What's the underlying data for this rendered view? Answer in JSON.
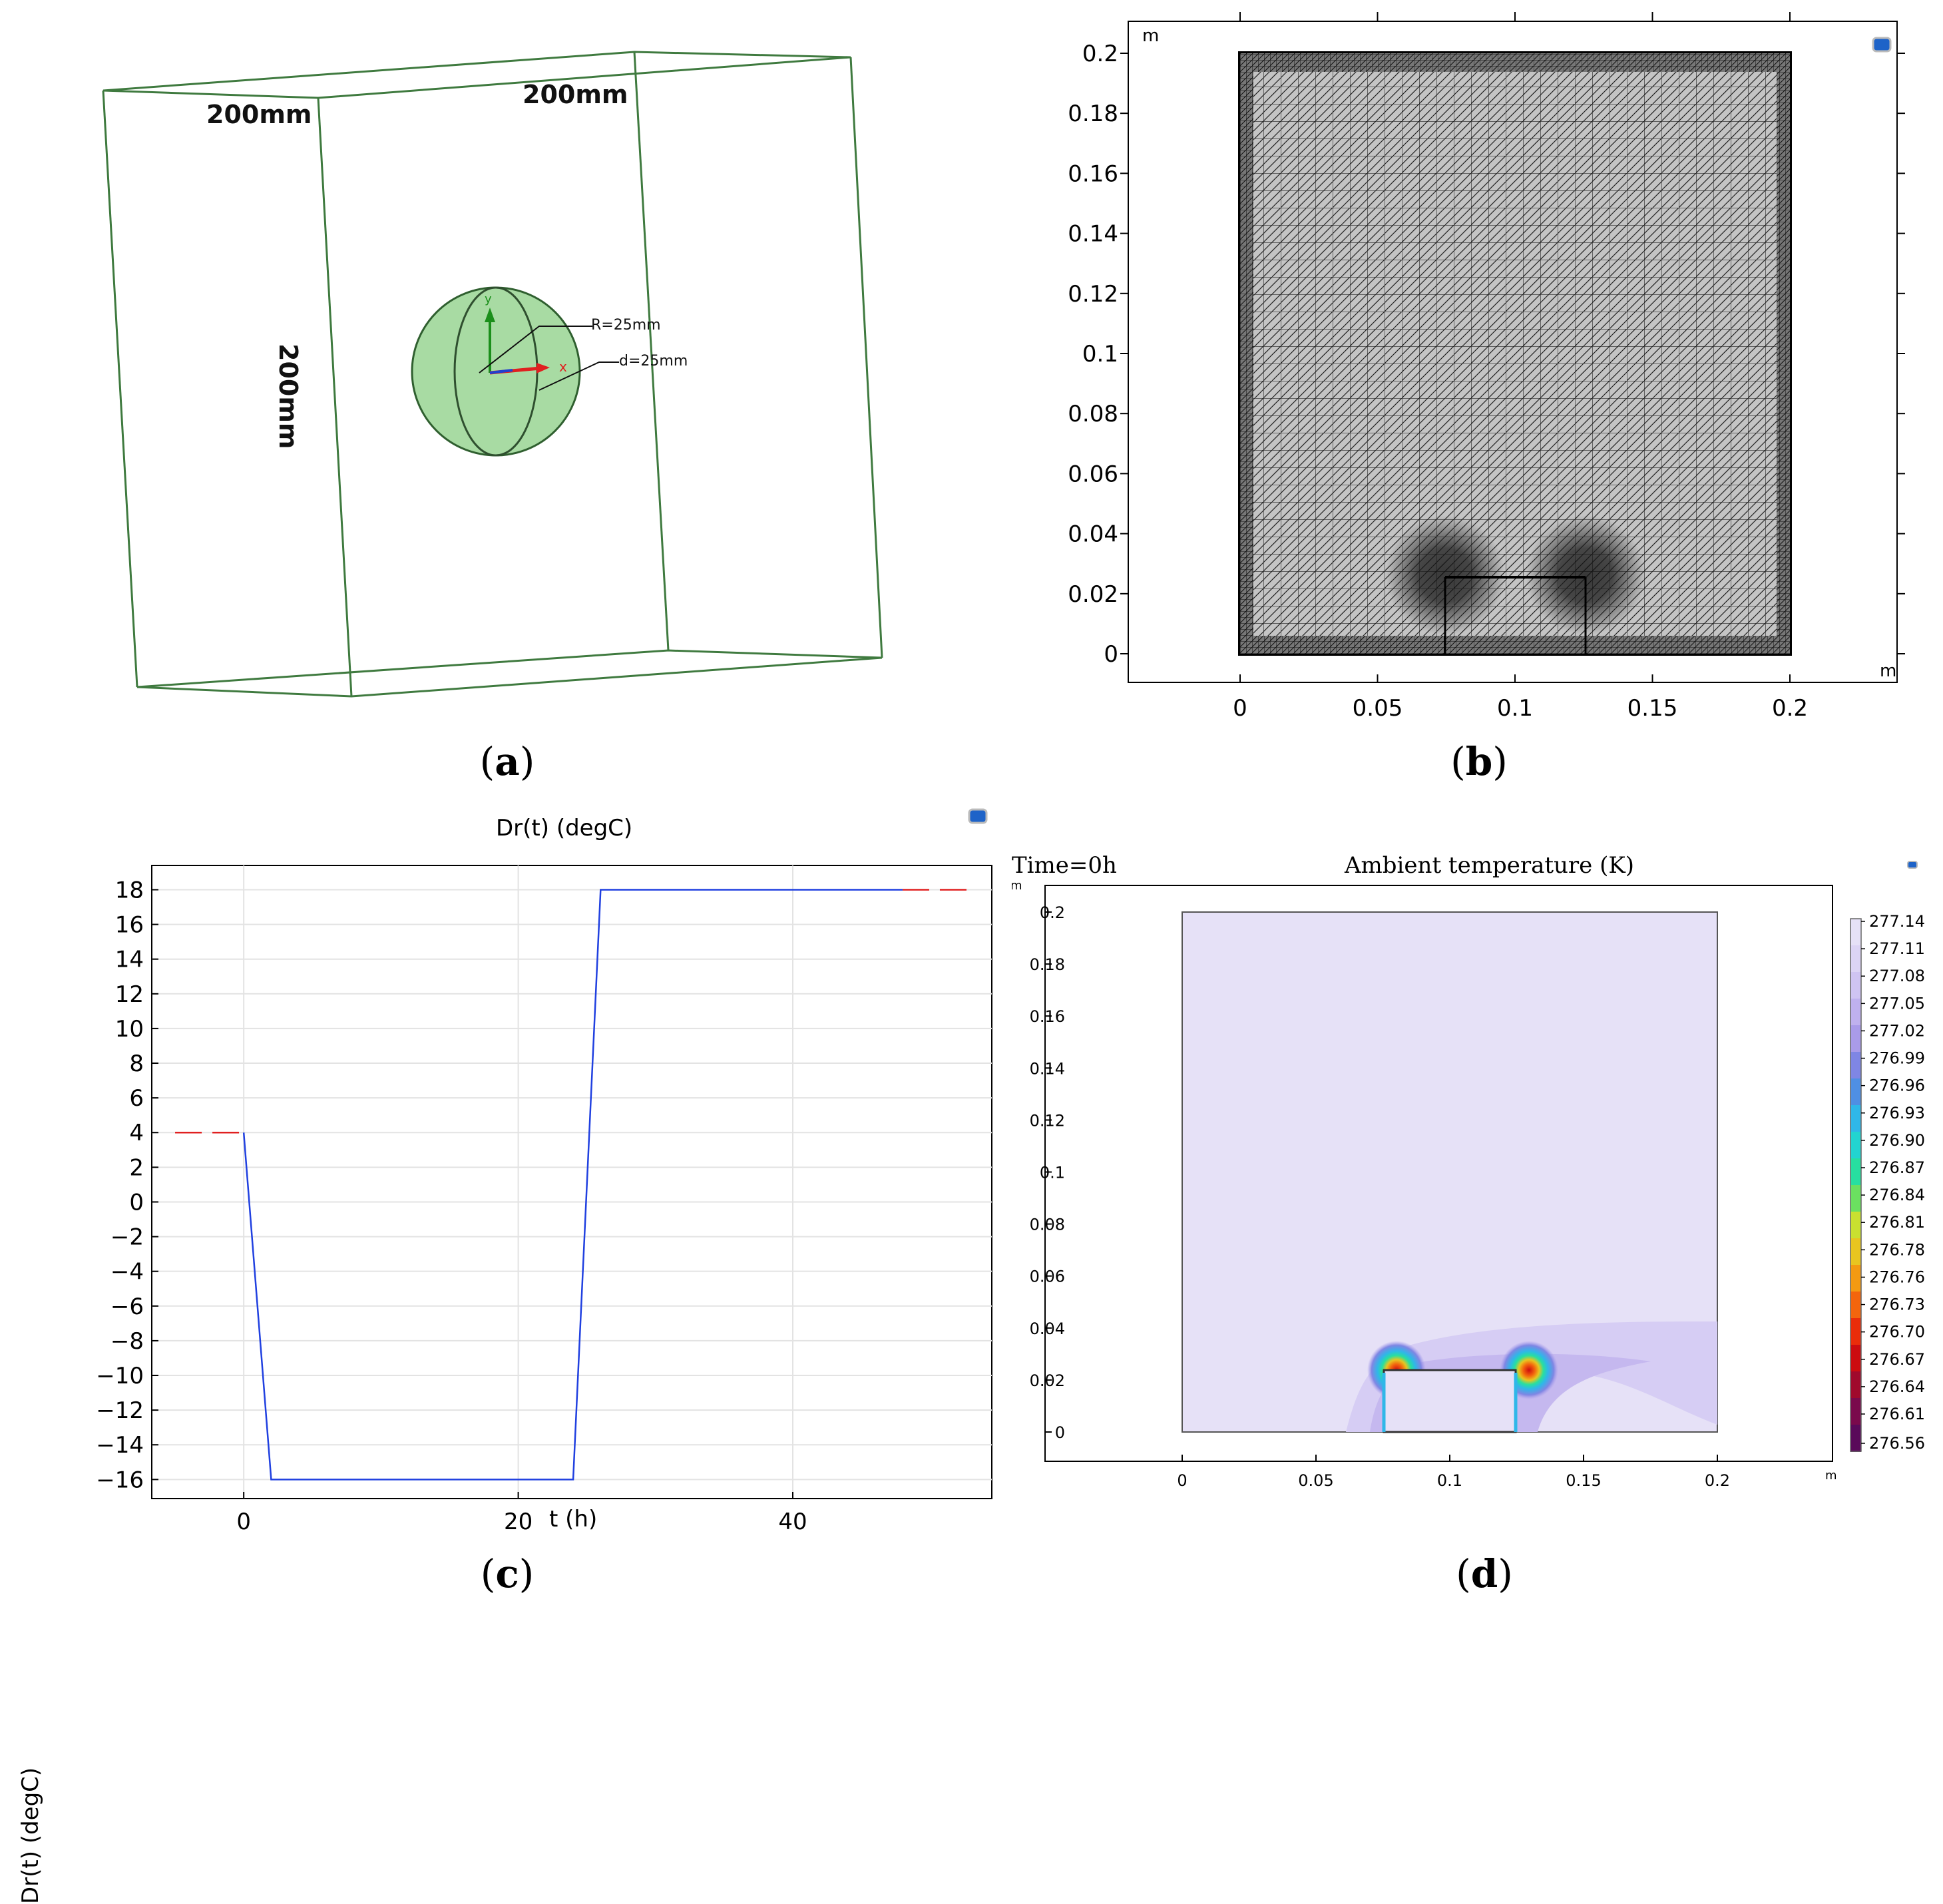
{
  "panel_a": {
    "caption": "a",
    "dims": {
      "top_left": "200mm",
      "top_right": "200mm",
      "left_vertical": "200mm"
    },
    "sphere_labels": {
      "radius": "R=25mm",
      "distance": "d=25mm"
    }
  },
  "panel_b": {
    "caption": "b",
    "x_unit": "m",
    "y_unit": "m",
    "x_ticks": [
      "0",
      "0.05",
      "0.1",
      "0.15",
      "0.2"
    ],
    "y_ticks": [
      "0",
      "0.02",
      "0.04",
      "0.06",
      "0.08",
      "0.1",
      "0.12",
      "0.14",
      "0.16",
      "0.18",
      "0.2"
    ]
  },
  "panel_c": {
    "caption": "c",
    "title": "Dr(t) (degC)",
    "xlabel": "t (h)",
    "ylabel": "Dr(t) (degC)",
    "x_ticks": [
      "0",
      "20",
      "40"
    ],
    "y_ticks": [
      "18",
      "16",
      "14",
      "12",
      "10",
      "8",
      "6",
      "4",
      "2",
      "0",
      "−2",
      "−4",
      "−6",
      "−8",
      "−10",
      "−12",
      "−14",
      "−16"
    ]
  },
  "panel_d": {
    "caption": "d",
    "time_label": "Time=0h",
    "title": "Ambient temperature (K)",
    "x_unit": "m",
    "y_unit": "m",
    "x_ticks": [
      "0",
      "0.05",
      "0.1",
      "0.15",
      "0.2"
    ],
    "y_ticks": [
      "0",
      "0.02",
      "0.04",
      "0.06",
      "0.08",
      "0.1",
      "0.12",
      "0.14",
      "0.16",
      "0.18",
      "0.2"
    ],
    "colorbar_labels": [
      "277.14",
      "277.11",
      "277.08",
      "277.05",
      "277.02",
      "276.99",
      "276.96",
      "276.93",
      "276.90",
      "276.87",
      "276.84",
      "276.81",
      "276.78",
      "276.76",
      "276.73",
      "276.70",
      "276.67",
      "276.64",
      "276.61",
      "276.56"
    ],
    "colorbar_colors": [
      "#e6e1f7",
      "#dcd4f5",
      "#cfc4f2",
      "#bfb1ee",
      "#a99be9",
      "#7f86e4",
      "#4f8fe3",
      "#2fb7e8",
      "#22d4d0",
      "#27dfa0",
      "#6be060",
      "#c9e030",
      "#e8c520",
      "#f39a12",
      "#f3650d",
      "#ea2d0a",
      "#cc0c10",
      "#a00a2c",
      "#7a0a4c",
      "#5a0a5a"
    ]
  },
  "chart_data": [
    {
      "type": "line",
      "title": "Dr(t) (degC)",
      "xlabel": "t (h)",
      "ylabel": "Dr(t) (degC)",
      "xlim": [
        -6.7,
        54.5
      ],
      "ylim": [
        -17.1,
        19.4
      ],
      "series": [
        {
          "x": [
            0,
            2,
            24,
            26,
            48
          ],
          "y": [
            4,
            -16,
            -16,
            18,
            18
          ]
        },
        {
          "x": [
            -5,
            0
          ],
          "y": [
            4,
            4
          ]
        },
        {
          "x": [
            48,
            53
          ],
          "y": [
            18,
            18
          ]
        }
      ],
      "grid": true
    }
  ]
}
